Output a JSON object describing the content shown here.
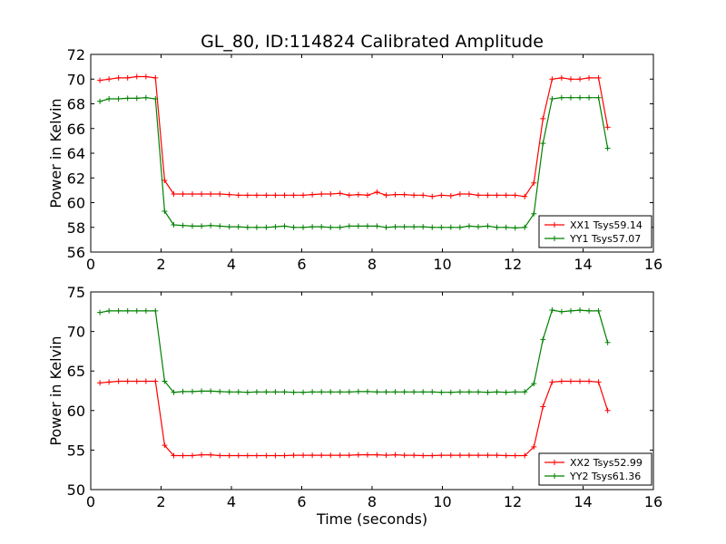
{
  "title": "GL_80, ID:114824 Calibrated Amplitude",
  "colors": {
    "red": "#ff0000",
    "green": "#008000",
    "axis": "#000000"
  },
  "chart_data": [
    {
      "type": "line",
      "title": "GL_80, ID:114824 Calibrated Amplitude",
      "xlabel": "",
      "ylabel": "Power in Kelvin",
      "xlim": [
        0,
        16
      ],
      "ylim": [
        56,
        72
      ],
      "xticks": [
        0,
        2,
        4,
        6,
        8,
        10,
        12,
        14,
        16
      ],
      "yticks": [
        56,
        58,
        60,
        62,
        64,
        66,
        68,
        70,
        72
      ],
      "legend_position": "lower-right",
      "grid": false,
      "x": [
        0.26,
        0.52,
        0.79,
        1.05,
        1.31,
        1.57,
        1.84,
        2.1,
        2.36,
        2.62,
        2.89,
        3.15,
        3.41,
        3.67,
        3.94,
        4.2,
        4.46,
        4.72,
        4.99,
        5.25,
        5.51,
        5.77,
        6.04,
        6.3,
        6.56,
        6.82,
        7.09,
        7.35,
        7.61,
        7.87,
        8.14,
        8.4,
        8.66,
        8.92,
        9.19,
        9.45,
        9.71,
        9.97,
        10.24,
        10.5,
        10.76,
        11.02,
        11.29,
        11.55,
        11.81,
        12.07,
        12.34,
        12.6,
        12.86,
        13.12,
        13.39,
        13.65,
        13.91,
        14.17,
        14.44,
        14.7
      ],
      "series": [
        {
          "name": "XX1 Tsys59.14",
          "color": "#ff0000",
          "values": [
            69.9,
            70.0,
            70.1,
            70.1,
            70.2,
            70.2,
            70.1,
            61.8,
            60.7,
            60.7,
            60.7,
            60.7,
            60.7,
            60.7,
            60.65,
            60.6,
            60.6,
            60.6,
            60.6,
            60.6,
            60.6,
            60.6,
            60.6,
            60.65,
            60.7,
            60.7,
            60.75,
            60.6,
            60.65,
            60.6,
            60.85,
            60.6,
            60.65,
            60.65,
            60.6,
            60.6,
            60.5,
            60.6,
            60.55,
            60.7,
            60.7,
            60.6,
            60.6,
            60.6,
            60.6,
            60.6,
            60.5,
            61.6,
            66.8,
            70.0,
            70.1,
            70.0,
            70.0,
            70.1,
            70.1,
            66.1
          ]
        },
        {
          "name": "YY1 Tsys57.07",
          "color": "#008000",
          "values": [
            68.2,
            68.4,
            68.4,
            68.45,
            68.45,
            68.5,
            68.4,
            59.3,
            58.2,
            58.15,
            58.1,
            58.1,
            58.15,
            58.1,
            58.05,
            58.05,
            58.0,
            58.0,
            58.0,
            58.05,
            58.1,
            58.0,
            58.0,
            58.05,
            58.05,
            58.0,
            58.0,
            58.1,
            58.1,
            58.1,
            58.1,
            58.0,
            58.05,
            58.05,
            58.05,
            58.05,
            58.0,
            58.0,
            58.0,
            58.0,
            58.1,
            58.05,
            58.1,
            58.0,
            58.0,
            57.95,
            58.0,
            59.1,
            64.8,
            68.4,
            68.5,
            68.5,
            68.5,
            68.5,
            68.5,
            64.4
          ]
        }
      ]
    },
    {
      "type": "line",
      "title": "",
      "xlabel": "Time (seconds)",
      "ylabel": "Power in Kelvin",
      "xlim": [
        0,
        16
      ],
      "ylim": [
        50,
        75
      ],
      "xticks": [
        0,
        2,
        4,
        6,
        8,
        10,
        12,
        14,
        16
      ],
      "yticks": [
        50,
        55,
        60,
        65,
        70,
        75
      ],
      "legend_position": "lower-right",
      "grid": false,
      "x": [
        0.26,
        0.52,
        0.79,
        1.05,
        1.31,
        1.57,
        1.84,
        2.1,
        2.36,
        2.62,
        2.89,
        3.15,
        3.41,
        3.67,
        3.94,
        4.2,
        4.46,
        4.72,
        4.99,
        5.25,
        5.51,
        5.77,
        6.04,
        6.3,
        6.56,
        6.82,
        7.09,
        7.35,
        7.61,
        7.87,
        8.14,
        8.4,
        8.66,
        8.92,
        9.19,
        9.45,
        9.71,
        9.97,
        10.24,
        10.5,
        10.76,
        11.02,
        11.29,
        11.55,
        11.81,
        12.07,
        12.34,
        12.6,
        12.86,
        13.12,
        13.39,
        13.65,
        13.91,
        14.17,
        14.44,
        14.7
      ],
      "series": [
        {
          "name": "XX2 Tsys52.99",
          "color": "#ff0000",
          "values": [
            63.5,
            63.6,
            63.7,
            63.7,
            63.7,
            63.7,
            63.7,
            55.6,
            54.3,
            54.3,
            54.3,
            54.4,
            54.4,
            54.3,
            54.3,
            54.3,
            54.3,
            54.3,
            54.3,
            54.3,
            54.3,
            54.35,
            54.35,
            54.35,
            54.35,
            54.35,
            54.35,
            54.35,
            54.4,
            54.4,
            54.4,
            54.35,
            54.4,
            54.35,
            54.35,
            54.3,
            54.3,
            54.35,
            54.35,
            54.35,
            54.35,
            54.35,
            54.35,
            54.35,
            54.3,
            54.3,
            54.3,
            55.4,
            60.5,
            63.6,
            63.7,
            63.7,
            63.7,
            63.7,
            63.6,
            60.0
          ]
        },
        {
          "name": "YY2 Tsys61.36",
          "color": "#008000",
          "values": [
            72.4,
            72.6,
            72.6,
            72.6,
            72.6,
            72.6,
            72.6,
            63.7,
            62.3,
            62.4,
            62.4,
            62.45,
            62.45,
            62.4,
            62.35,
            62.35,
            62.3,
            62.35,
            62.35,
            62.35,
            62.35,
            62.3,
            62.3,
            62.35,
            62.35,
            62.35,
            62.35,
            62.35,
            62.4,
            62.4,
            62.35,
            62.35,
            62.35,
            62.35,
            62.35,
            62.35,
            62.35,
            62.3,
            62.3,
            62.35,
            62.35,
            62.35,
            62.3,
            62.35,
            62.3,
            62.35,
            62.35,
            63.4,
            69.0,
            72.7,
            72.5,
            72.6,
            72.7,
            72.6,
            72.6,
            68.6
          ]
        }
      ]
    }
  ]
}
